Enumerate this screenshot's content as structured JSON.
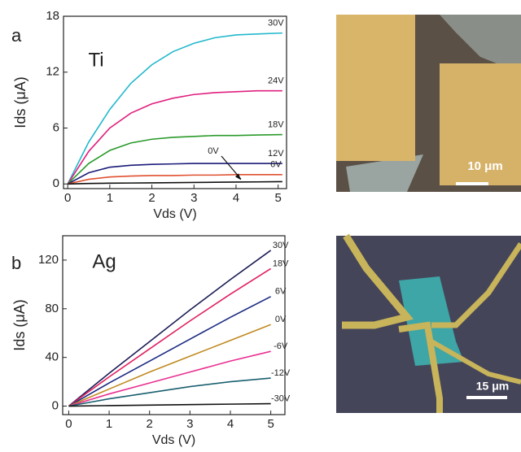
{
  "chart_data": [
    {
      "type": "line",
      "panel": "a",
      "title": "Ti",
      "xlabel": "Vds (V)",
      "ylabel": "Ids (μA)",
      "x": [
        0,
        0.5,
        1,
        1.5,
        2,
        2.5,
        3,
        3.5,
        4,
        4.5,
        5.1
      ],
      "xlim": [
        -0.1,
        5.2
      ],
      "xticks": [
        0,
        1,
        2,
        3,
        4,
        5
      ],
      "ylim": [
        -0.5,
        18
      ],
      "yticks": [
        0,
        6,
        12,
        18
      ],
      "series": [
        {
          "name": "30V",
          "color": "#22b8cc",
          "values": [
            0,
            4.5,
            8.0,
            10.8,
            12.8,
            14.2,
            15.1,
            15.7,
            16.0,
            16.1,
            16.2
          ]
        },
        {
          "name": "24V",
          "color": "#e0207f",
          "values": [
            0,
            3.5,
            6.0,
            7.6,
            8.6,
            9.2,
            9.6,
            9.8,
            9.9,
            10.0,
            10.0
          ]
        },
        {
          "name": "18V",
          "color": "#2a9a2a",
          "values": [
            0,
            2.2,
            3.6,
            4.4,
            4.8,
            5.0,
            5.1,
            5.2,
            5.2,
            5.25,
            5.3
          ]
        },
        {
          "name": "12V",
          "color": "#1a1a7a",
          "values": [
            0,
            1.2,
            1.8,
            2.0,
            2.1,
            2.15,
            2.2,
            2.2,
            2.2,
            2.2,
            2.2
          ]
        },
        {
          "name": "6V",
          "color": "#e05030",
          "values": [
            0,
            0.5,
            0.75,
            0.85,
            0.9,
            0.9,
            0.95,
            0.95,
            1.0,
            1.0,
            1.0
          ]
        },
        {
          "name": "0V",
          "color": "#111111",
          "values": [
            0,
            0.05,
            0.08,
            0.1,
            0.12,
            0.14,
            0.16,
            0.18,
            0.2,
            0.22,
            0.25
          ]
        }
      ]
    },
    {
      "type": "line",
      "panel": "b",
      "title": "Ag",
      "xlabel": "Vds (V)",
      "ylabel": "Ids (μA)",
      "x": [
        0,
        1,
        2,
        3,
        4,
        5
      ],
      "xlim": [
        -0.15,
        5.35
      ],
      "xticks": [
        0,
        1,
        2,
        3,
        4,
        5
      ],
      "ylim": [
        -7,
        140
      ],
      "yticks": [
        0,
        40,
        80,
        120
      ],
      "series": [
        {
          "name": "30V",
          "color": "#1c1c55",
          "values": [
            0,
            27,
            53,
            79,
            104,
            128
          ]
        },
        {
          "name": "18V",
          "color": "#e0205f",
          "values": [
            0,
            24,
            47,
            70,
            92,
            113
          ]
        },
        {
          "name": "6V",
          "color": "#1a2a80",
          "values": [
            0,
            19,
            37,
            55,
            73,
            90
          ]
        },
        {
          "name": "0V",
          "color": "#c08a20",
          "values": [
            0,
            14,
            28,
            41,
            54,
            67
          ]
        },
        {
          "name": "-6V",
          "color": "#e83090",
          "values": [
            0,
            10,
            19,
            28,
            37,
            45
          ]
        },
        {
          "name": "-12V",
          "color": "#1a6070",
          "values": [
            0,
            6,
            11,
            16,
            20,
            23
          ]
        },
        {
          "name": "-30V",
          "color": "#111111",
          "values": [
            0,
            0.4,
            0.8,
            1.2,
            1.6,
            2
          ]
        }
      ]
    }
  ],
  "images": [
    {
      "scale_bar": "10 μm"
    },
    {
      "scale_bar": "15 μm"
    }
  ]
}
